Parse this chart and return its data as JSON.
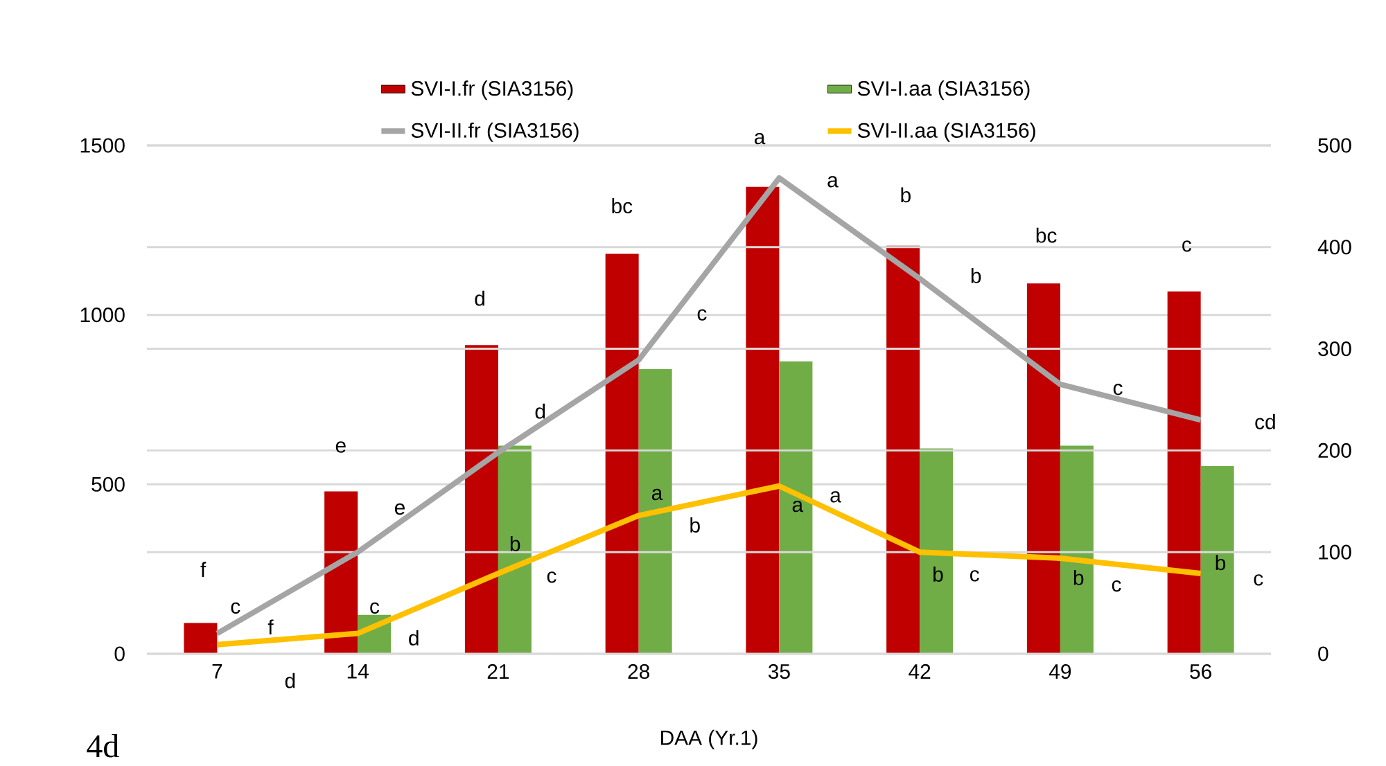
{
  "chart_data": {
    "type": "bar",
    "categories": [
      "7",
      "14",
      "21",
      "28",
      "35",
      "42",
      "49",
      "56"
    ],
    "xlabel": "DAA (Yr.1)",
    "series": [
      {
        "name": "SVI-I.fr (SIA3156)",
        "color": "#c00000",
        "values": [
          91,
          479,
          911,
          1180,
          1378,
          1204,
          1093,
          1069
        ]
      },
      {
        "name": "SVI-I.aa (SIA3156)",
        "color": "#70ad47",
        "values": [
          null,
          115,
          614,
          840,
          863,
          606,
          614,
          554
        ]
      },
      {
        "name": "SVI-II.fr (SIA3156)",
        "type": "line",
        "axis": "y2",
        "color": "#a5a5a5",
        "values": [
          20,
          100,
          198,
          289,
          468,
          369,
          265,
          230
        ]
      },
      {
        "name": "SVI-II.aa (SIA3156)",
        "type": "line",
        "axis": "y2",
        "color": "#ffc000",
        "values": [
          9,
          20,
          79,
          136,
          165,
          100,
          94,
          79
        ]
      }
    ],
    "ylim": [
      0,
      1500
    ],
    "yticks": [
      0,
      500,
      1000,
      1500
    ],
    "y2lim": [
      0,
      500
    ],
    "y2ticks": [
      0,
      100,
      200,
      300,
      400,
      500
    ],
    "grid": "y",
    "legend": "top",
    "marker": "none",
    "line_style": "solid",
    "annotations": [
      "f",
      "e",
      "d",
      "bc",
      "a",
      "b",
      "bc",
      "c",
      "d",
      "c",
      "b",
      "a",
      "a",
      "b",
      "b",
      "b",
      "c",
      "e",
      "d",
      "c",
      "a",
      "b",
      "c",
      "cd",
      "f",
      "d",
      "c",
      "b",
      "a",
      "c",
      "c",
      "c",
      "4d"
    ]
  }
}
